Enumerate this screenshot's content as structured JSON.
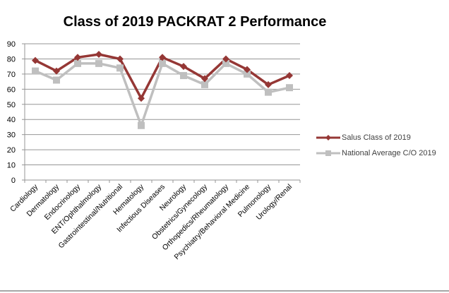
{
  "chart_data": {
    "type": "line",
    "title": "Class of 2019 PACKRAT 2 Performance",
    "xlabel": "",
    "ylabel": "",
    "ylim": [
      0,
      90
    ],
    "yticks": [
      "0",
      "10",
      "20",
      "30",
      "40",
      "50",
      "60",
      "70",
      "80",
      "90"
    ],
    "grid": true,
    "legend_position": "right",
    "categories": [
      "Cardiology",
      "Dermatology",
      "Endocrinology",
      "ENT/Ophthalmology",
      "Gastrointestinal/Nutritional",
      "Hematology",
      "Infectious Diseases",
      "Neurology",
      "Obstetrics/Gynecology",
      "Orthopedics/Rheumatology",
      "Psychiatry/Behavioral Medicine",
      "Pulmonology",
      "Urology/Renal"
    ],
    "series": [
      {
        "name": "Salus Class of 2019",
        "color": "#953735",
        "marker": "diamond",
        "values": [
          79,
          72,
          81,
          83,
          80,
          54,
          81,
          75,
          67,
          80,
          73,
          63,
          69
        ]
      },
      {
        "name": "National Average C/O 2019",
        "color": "#bfbfbf",
        "marker": "square",
        "values": [
          72,
          66,
          77,
          77,
          74,
          36,
          77,
          69,
          63,
          77,
          70,
          58,
          61
        ]
      }
    ]
  }
}
